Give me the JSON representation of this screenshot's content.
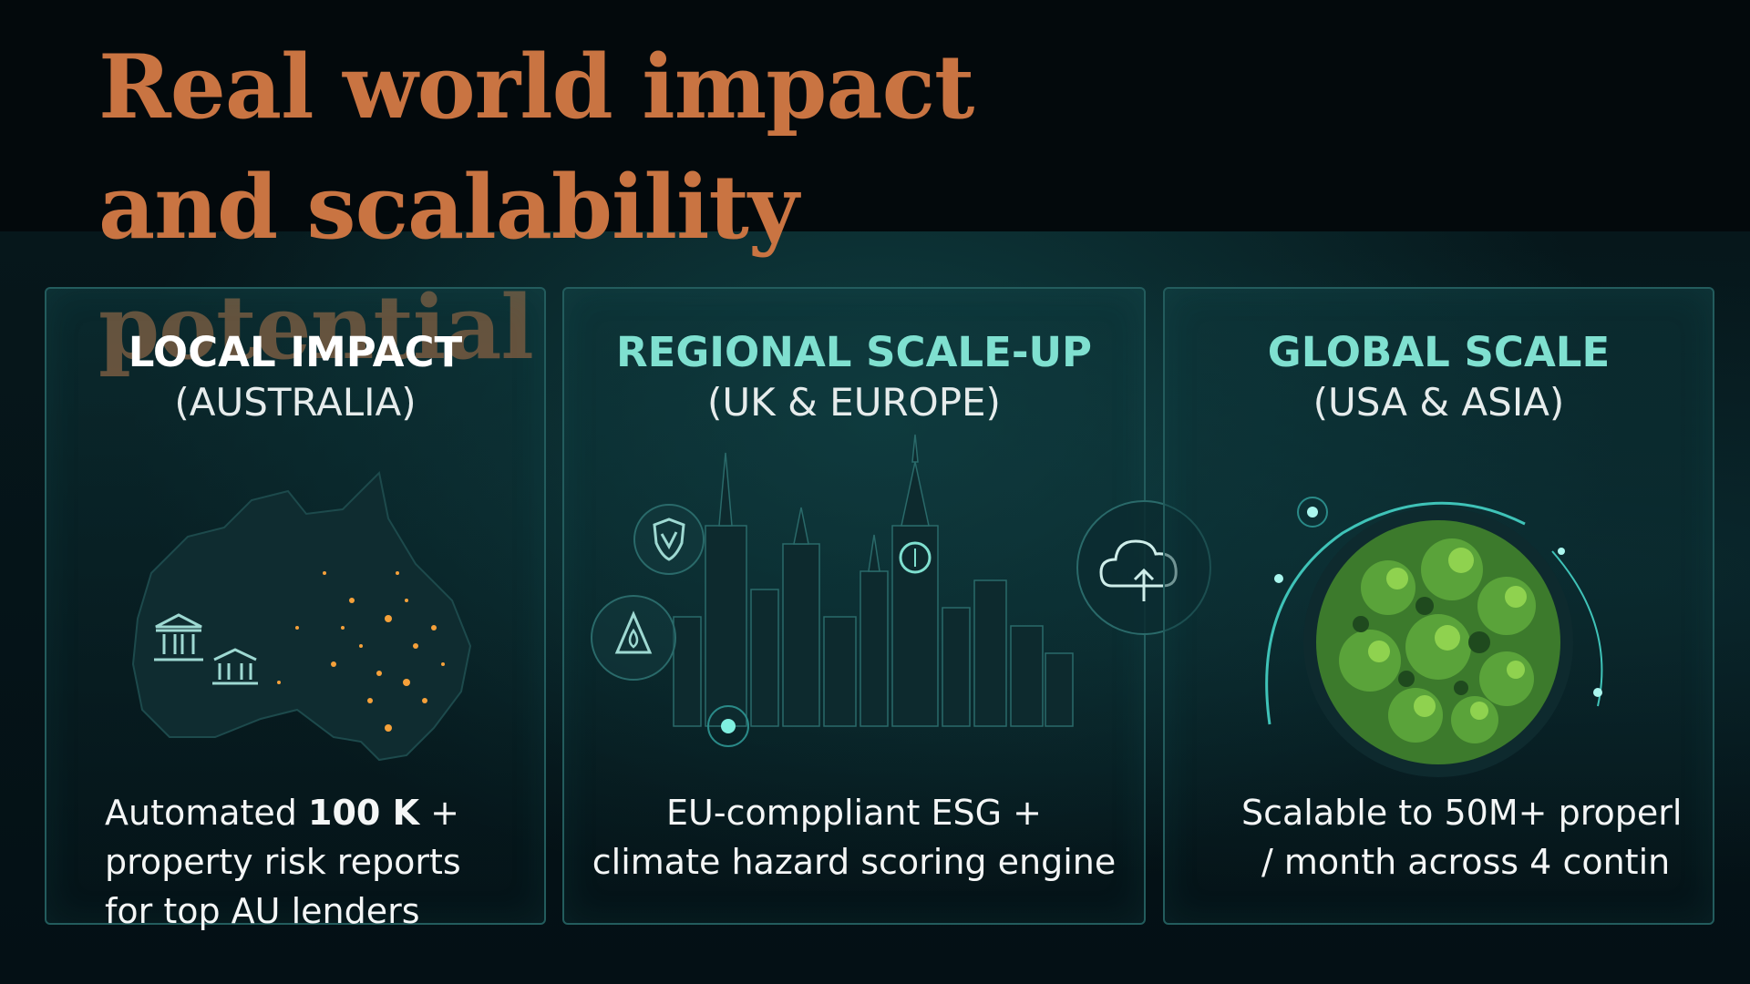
{
  "title": "Real world impact and scalability potential",
  "colors": {
    "title": "#c97442",
    "accent_teal": "#5fd6c8",
    "card_border": "#235c5d",
    "background": "#03090c"
  },
  "cards": [
    {
      "title": "LOCAL IMPACT",
      "subtitle": "(AUSTRALIA)",
      "desc_line1_pre": "Automated ",
      "desc_line1_bold": "100 K",
      "desc_line1_post": " +",
      "desc_line2": "property risk reports",
      "desc_line3": "for top AU lenders",
      "icons": [
        "australia-map-icon",
        "bank-building-icon",
        "bank-small-icon"
      ]
    },
    {
      "title": "REGIONAL SCALE-UP",
      "subtitle": "(UK & EUROPE)",
      "desc_line1": "EU-comppliant ESG +",
      "desc_line2": "climate hazard scoring engine",
      "icons": [
        "shield-icon",
        "flame-drop-icon",
        "city-skyline-icon",
        "cloud-upload-icon"
      ]
    },
    {
      "title": "GLOBAL SCALE",
      "subtitle": "(USA & ASIA)",
      "desc_line1": "Scalable to 50M+ properl",
      "desc_line2": "/ month across 4 contin",
      "icons": [
        "forest-globe-icon"
      ]
    }
  ]
}
